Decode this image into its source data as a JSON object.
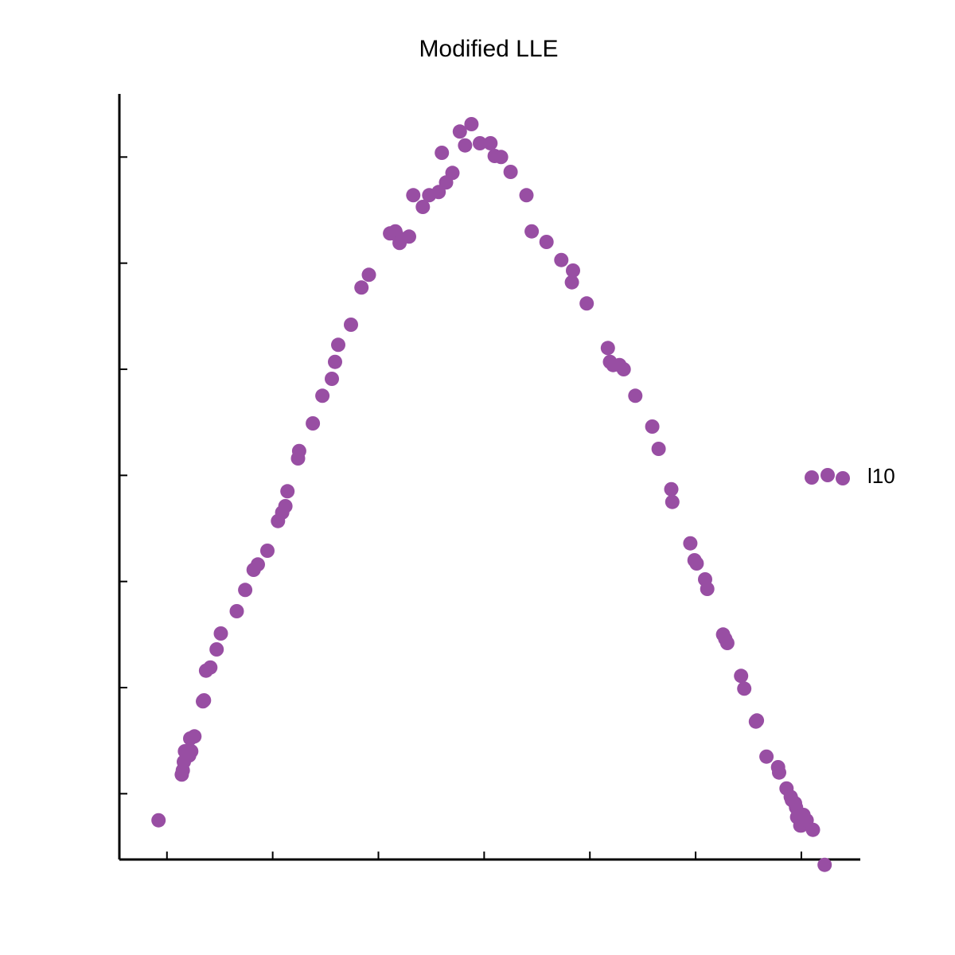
{
  "chart_data": {
    "type": "scatter",
    "title": "Modified LLE",
    "xlabel": "",
    "ylabel": "",
    "xlim": [
      0,
      7
    ],
    "ylim": [
      0,
      7.2
    ],
    "x_ticks": [
      0.45,
      1.45,
      2.45,
      3.45,
      4.45,
      5.45,
      6.45
    ],
    "y_ticks": [
      0.62,
      1.62,
      2.62,
      3.62,
      4.62,
      5.62,
      6.62
    ],
    "grid": false,
    "legend": {
      "position": "right",
      "entries": [
        "l10"
      ]
    },
    "series": [
      {
        "name": "l10",
        "color": "#984ea3",
        "points": [
          [
            0.37,
            0.37
          ],
          [
            0.59,
            0.8
          ],
          [
            0.6,
            0.84
          ],
          [
            0.61,
            0.92
          ],
          [
            0.62,
            1.02
          ],
          [
            0.66,
            0.98
          ],
          [
            0.68,
            1.02
          ],
          [
            0.67,
            1.14
          ],
          [
            0.71,
            1.16
          ],
          [
            0.79,
            1.49
          ],
          [
            0.8,
            1.5
          ],
          [
            0.82,
            1.78
          ],
          [
            0.86,
            1.81
          ],
          [
            0.92,
            1.98
          ],
          [
            0.96,
            2.13
          ],
          [
            1.11,
            2.34
          ],
          [
            1.19,
            2.54
          ],
          [
            1.27,
            2.73
          ],
          [
            1.31,
            2.78
          ],
          [
            1.4,
            2.91
          ],
          [
            1.5,
            3.19
          ],
          [
            1.54,
            3.27
          ],
          [
            1.57,
            3.33
          ],
          [
            1.59,
            3.47
          ],
          [
            1.69,
            3.78
          ],
          [
            1.7,
            3.85
          ],
          [
            1.83,
            4.11
          ],
          [
            1.92,
            4.37
          ],
          [
            2.01,
            4.53
          ],
          [
            2.04,
            4.69
          ],
          [
            2.07,
            4.85
          ],
          [
            2.19,
            5.04
          ],
          [
            2.29,
            5.39
          ],
          [
            2.36,
            5.51
          ],
          [
            2.56,
            5.9
          ],
          [
            2.61,
            5.92
          ],
          [
            2.62,
            5.89
          ],
          [
            2.65,
            5.81
          ],
          [
            2.74,
            5.87
          ],
          [
            2.78,
            6.26
          ],
          [
            2.87,
            6.15
          ],
          [
            2.93,
            6.26
          ],
          [
            3.02,
            6.29
          ],
          [
            3.05,
            6.66
          ],
          [
            3.09,
            6.38
          ],
          [
            3.15,
            6.47
          ],
          [
            3.22,
            6.86
          ],
          [
            3.27,
            6.73
          ],
          [
            3.33,
            6.93
          ],
          [
            3.41,
            6.75
          ],
          [
            3.51,
            6.75
          ],
          [
            3.55,
            6.63
          ],
          [
            3.61,
            6.62
          ],
          [
            3.7,
            6.48
          ],
          [
            3.85,
            6.26
          ],
          [
            3.9,
            5.92
          ],
          [
            4.04,
            5.82
          ],
          [
            4.18,
            5.65
          ],
          [
            4.29,
            5.55
          ],
          [
            4.28,
            5.44
          ],
          [
            4.42,
            5.24
          ],
          [
            4.62,
            4.82
          ],
          [
            4.64,
            4.69
          ],
          [
            4.67,
            4.66
          ],
          [
            4.73,
            4.66
          ],
          [
            4.77,
            4.62
          ],
          [
            4.88,
            4.37
          ],
          [
            5.04,
            4.08
          ],
          [
            5.1,
            3.87
          ],
          [
            5.22,
            3.49
          ],
          [
            5.23,
            3.37
          ],
          [
            5.4,
            2.98
          ],
          [
            5.44,
            2.82
          ],
          [
            5.46,
            2.79
          ],
          [
            5.54,
            2.64
          ],
          [
            5.56,
            2.55
          ],
          [
            5.71,
            2.12
          ],
          [
            5.73,
            2.08
          ],
          [
            5.75,
            2.04
          ],
          [
            5.88,
            1.73
          ],
          [
            5.91,
            1.61
          ],
          [
            6.02,
            1.3
          ],
          [
            6.03,
            1.31
          ],
          [
            6.12,
            0.97
          ],
          [
            6.23,
            0.87
          ],
          [
            6.24,
            0.82
          ],
          [
            6.31,
            0.67
          ],
          [
            6.35,
            0.59
          ],
          [
            6.36,
            0.56
          ],
          [
            6.39,
            0.53
          ],
          [
            6.4,
            0.49
          ],
          [
            6.41,
            0.4
          ],
          [
            6.44,
            0.32
          ],
          [
            6.45,
            0.32
          ],
          [
            6.47,
            0.42
          ],
          [
            6.5,
            0.37
          ],
          [
            6.56,
            0.28
          ],
          [
            6.67,
            -0.05
          ]
        ]
      }
    ]
  }
}
